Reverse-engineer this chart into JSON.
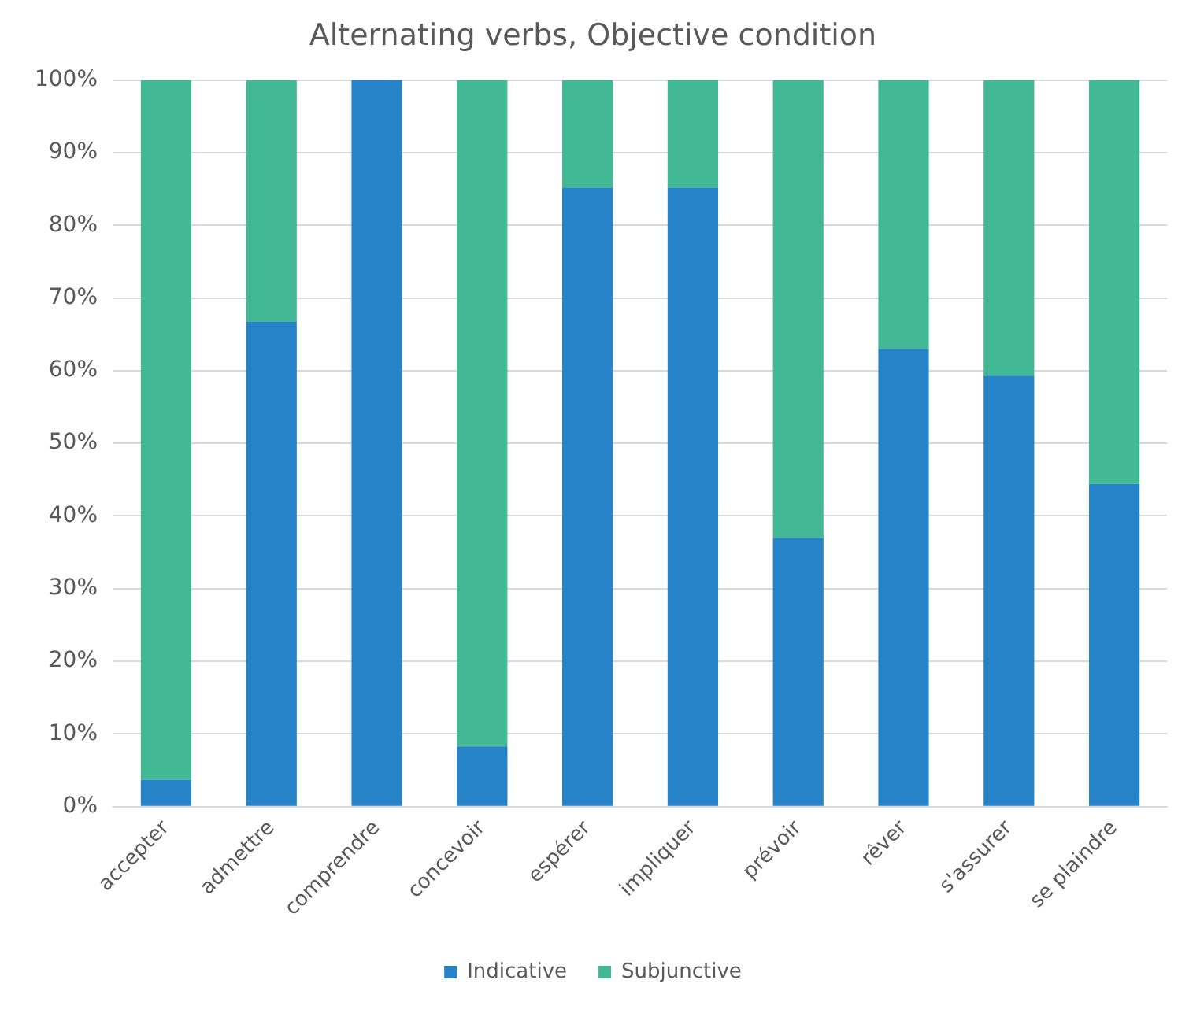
{
  "chart_data": {
    "type": "bar",
    "title": "Alternating verbs, Objective condition",
    "stacked": true,
    "categories": [
      "accepter",
      "admettre",
      "comprendre",
      "concevoir",
      "espérer",
      "impliquer",
      "prévoir",
      "rêver",
      "s'assurer",
      "se plaindre"
    ],
    "series": [
      {
        "name": "Indicative",
        "color": "#2783c8",
        "values": [
          3.7,
          66.7,
          100,
          8.3,
          85.2,
          85.2,
          37.0,
          63.0,
          59.3,
          44.4
        ]
      },
      {
        "name": "Subjunctive",
        "color": "#42b994",
        "values": [
          96.3,
          33.3,
          0,
          91.7,
          14.8,
          14.8,
          63.0,
          37.0,
          40.7,
          55.6
        ]
      }
    ],
    "ylim": [
      0,
      100
    ],
    "yticks": [
      {
        "value": 0,
        "label": "0%"
      },
      {
        "value": 10,
        "label": "10%"
      },
      {
        "value": 20,
        "label": "20%"
      },
      {
        "value": 30,
        "label": "30%"
      },
      {
        "value": 40,
        "label": "40%"
      },
      {
        "value": 50,
        "label": "50%"
      },
      {
        "value": 60,
        "label": "60%"
      },
      {
        "value": 70,
        "label": "70%"
      },
      {
        "value": 80,
        "label": "80%"
      },
      {
        "value": 90,
        "label": "90%"
      },
      {
        "value": 100,
        "label": "100%"
      }
    ],
    "grid": "y",
    "legend": "bottom"
  }
}
